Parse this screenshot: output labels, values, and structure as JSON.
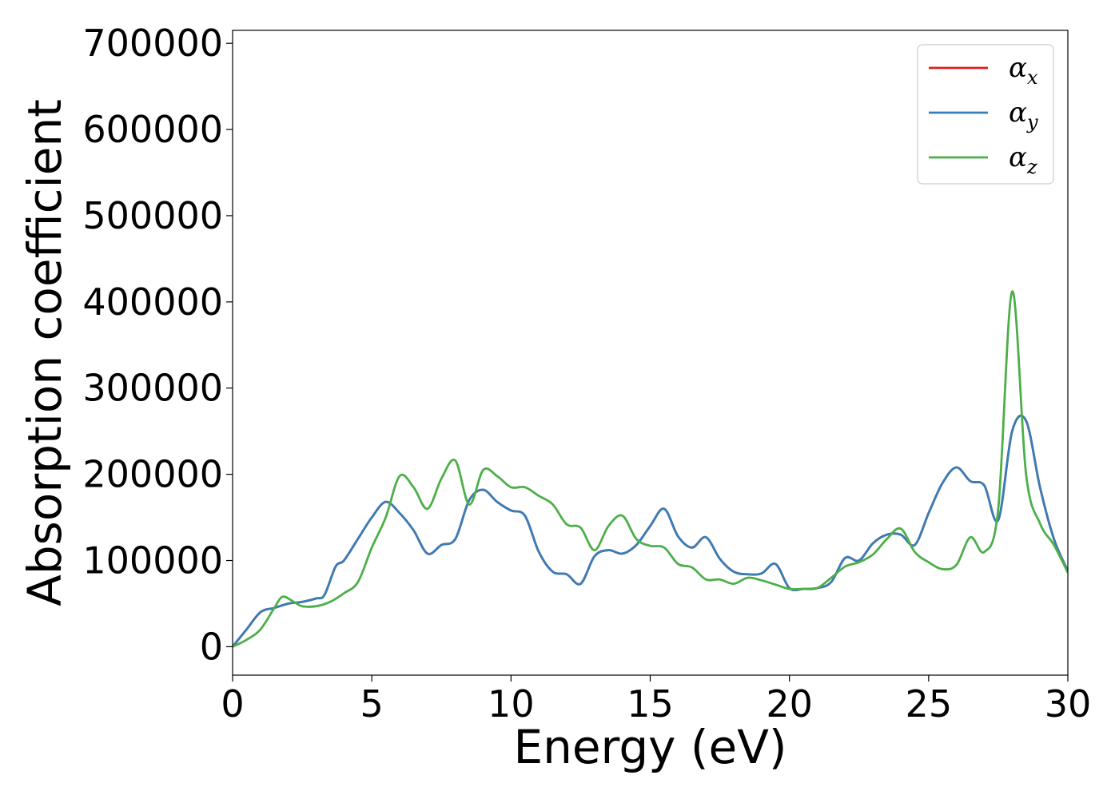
{
  "chart_data": {
    "type": "line",
    "xlabel": "Energy (eV)",
    "ylabel": "Absorption coefficient",
    "xlim": [
      0,
      30
    ],
    "ylim": [
      -33000,
      715000
    ],
    "xticks": [
      0,
      5,
      10,
      15,
      20,
      25,
      30
    ],
    "yticks": [
      0,
      100000,
      200000,
      300000,
      400000,
      500000,
      600000,
      700000
    ],
    "grid": false,
    "legend_position": "top-right",
    "series": [
      {
        "name": "α_x",
        "symbol": "α",
        "subscript": "x",
        "color": "#e41a1c",
        "x": [
          0,
          0.5,
          1,
          1.5,
          2,
          2.5,
          3,
          3.3,
          3.7,
          4,
          4.5,
          5,
          5.5,
          6,
          6.5,
          7,
          7.5,
          8,
          8.5,
          9,
          9.5,
          10,
          10.5,
          11,
          11.5,
          12,
          12.5,
          13,
          13.5,
          14,
          14.5,
          15,
          15.5,
          16,
          16.5,
          17,
          17.5,
          18,
          18.5,
          19,
          19.5,
          20,
          20.5,
          21,
          21.5,
          22,
          22.5,
          23,
          23.5,
          24,
          24.5,
          25,
          25.5,
          26,
          26.5,
          27,
          27.5,
          28,
          28.5,
          29,
          29.5,
          30
        ],
        "y": [
          0,
          20000,
          40000,
          45000,
          50000,
          52000,
          56000,
          60000,
          93000,
          100000,
          125000,
          150000,
          168000,
          155000,
          135000,
          108000,
          118000,
          125000,
          170000,
          182000,
          168000,
          158000,
          152000,
          110000,
          87000,
          84000,
          73000,
          105000,
          112000,
          108000,
          118000,
          140000,
          160000,
          128000,
          115000,
          127000,
          102000,
          87000,
          84000,
          85000,
          96000,
          68000,
          67000,
          68000,
          75000,
          103000,
          100000,
          120000,
          130000,
          130000,
          118000,
          155000,
          190000,
          208000,
          192000,
          187000,
          147000,
          250000,
          262000,
          185000,
          125000,
          88000
        ]
      },
      {
        "name": "α_y",
        "symbol": "α",
        "subscript": "y",
        "color": "#377eb8",
        "x": [
          0,
          0.5,
          1,
          1.5,
          2,
          2.5,
          3,
          3.3,
          3.7,
          4,
          4.5,
          5,
          5.5,
          6,
          6.5,
          7,
          7.5,
          8,
          8.5,
          9,
          9.5,
          10,
          10.5,
          11,
          11.5,
          12,
          12.5,
          13,
          13.5,
          14,
          14.5,
          15,
          15.5,
          16,
          16.5,
          17,
          17.5,
          18,
          18.5,
          19,
          19.5,
          20,
          20.5,
          21,
          21.5,
          22,
          22.5,
          23,
          23.5,
          24,
          24.5,
          25,
          25.5,
          26,
          26.5,
          27,
          27.5,
          28,
          28.5,
          29,
          29.5,
          30
        ],
        "y": [
          0,
          20000,
          40000,
          45000,
          50000,
          52000,
          56000,
          60000,
          93000,
          100000,
          125000,
          150000,
          168000,
          155000,
          135000,
          108000,
          118000,
          125000,
          170000,
          182000,
          168000,
          158000,
          152000,
          110000,
          87000,
          84000,
          73000,
          105000,
          112000,
          108000,
          118000,
          140000,
          160000,
          128000,
          115000,
          127000,
          102000,
          87000,
          84000,
          85000,
          96000,
          68000,
          67000,
          68000,
          75000,
          103000,
          100000,
          120000,
          130000,
          130000,
          118000,
          155000,
          190000,
          208000,
          192000,
          187000,
          147000,
          250000,
          262000,
          185000,
          125000,
          88000
        ]
      },
      {
        "name": "α_z",
        "symbol": "α",
        "subscript": "z",
        "color": "#4daf4a",
        "x": [
          0,
          0.5,
          1,
          1.5,
          1.8,
          2.2,
          2.5,
          3,
          3.5,
          4,
          4.5,
          5,
          5.5,
          6,
          6.5,
          7,
          7.5,
          8,
          8.5,
          9,
          9.5,
          10,
          10.5,
          11,
          11.5,
          12,
          12.5,
          13,
          13.5,
          14,
          14.5,
          15,
          15.5,
          16,
          16.5,
          17,
          17.5,
          18,
          18.5,
          19,
          19.5,
          20,
          20.5,
          21,
          21.5,
          22,
          22.5,
          23,
          23.5,
          24,
          24.5,
          25,
          25.5,
          26,
          26.5,
          27,
          27.5,
          28,
          28.5,
          29,
          29.5,
          30
        ],
        "y": [
          0,
          8000,
          20000,
          45000,
          58000,
          52000,
          47000,
          47000,
          52000,
          62000,
          75000,
          115000,
          150000,
          198000,
          185000,
          160000,
          195000,
          216000,
          165000,
          205000,
          198000,
          185000,
          185000,
          175000,
          165000,
          142000,
          138000,
          112000,
          140000,
          152000,
          125000,
          117000,
          115000,
          96000,
          92000,
          78000,
          78000,
          73000,
          80000,
          77000,
          72000,
          67000,
          67000,
          68000,
          80000,
          93000,
          98000,
          107000,
          125000,
          137000,
          110000,
          98000,
          90000,
          95000,
          127000,
          110000,
          160000,
          412000,
          200000,
          143000,
          118000,
          86000
        ]
      }
    ]
  }
}
